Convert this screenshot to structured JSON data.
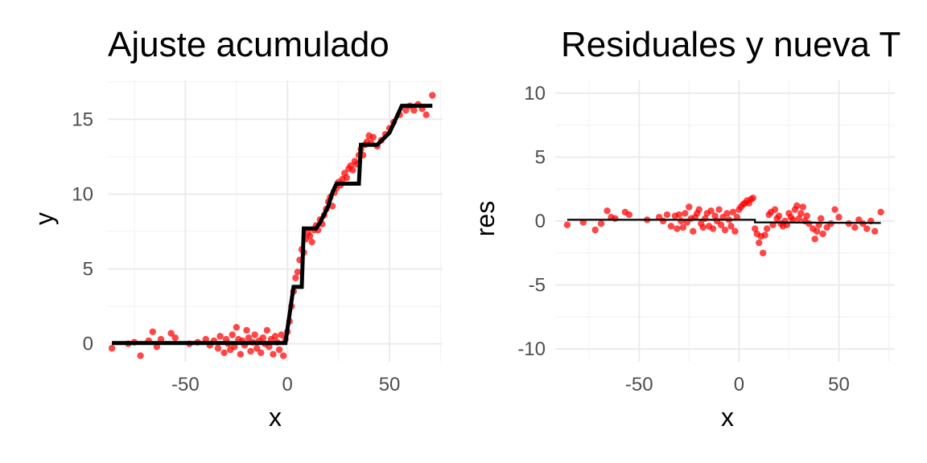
{
  "colors": {
    "points": "#ff0000",
    "fit_line": "#000000",
    "tick_text": "#4d4d4d",
    "grid": "#ebebeb"
  },
  "chart_data": [
    {
      "type": "scatter",
      "title": "Ajuste acumulado",
      "xlabel": "x",
      "ylabel": "y",
      "xlim": [
        -88,
        76
      ],
      "ylim": [
        -1.2,
        17.6
      ],
      "xticks": [
        -50,
        0,
        50
      ],
      "yticks": [
        0,
        5,
        10,
        15
      ],
      "grid": true,
      "legend": "none",
      "series": [
        {
          "kind": "points",
          "points": [
            [
              -86,
              -0.3
            ],
            [
              -78,
              0.0
            ],
            [
              -75,
              0.1
            ],
            [
              -72,
              -0.8
            ],
            [
              -68,
              0.2
            ],
            [
              -66,
              0.8
            ],
            [
              -64,
              -0.2
            ],
            [
              -62,
              0.3
            ],
            [
              -57,
              0.7
            ],
            [
              -55,
              0.4
            ],
            [
              -48,
              0.0
            ],
            [
              -44,
              0.1
            ],
            [
              -40,
              0.3
            ],
            [
              -38,
              -0.1
            ],
            [
              -36,
              0.2
            ],
            [
              -34,
              -0.3
            ],
            [
              -33,
              0.5
            ],
            [
              -31,
              -0.6
            ],
            [
              -30,
              0.3
            ],
            [
              -29,
              0.0
            ],
            [
              -28,
              -0.4
            ],
            [
              -27,
              0.6
            ],
            [
              -26,
              -0.2
            ],
            [
              -25,
              1.1
            ],
            [
              -24,
              0.3
            ],
            [
              -23,
              -0.7
            ],
            [
              -22,
              0.2
            ],
            [
              -21,
              -0.1
            ],
            [
              -20,
              0.9
            ],
            [
              -19,
              0.4
            ],
            [
              -18,
              -0.5
            ],
            [
              -17,
              0.1
            ],
            [
              -16,
              0.6
            ],
            [
              -15,
              -0.3
            ],
            [
              -14,
              0.2
            ],
            [
              -13,
              -0.6
            ],
            [
              -12,
              0.4
            ],
            [
              -11,
              0.0
            ],
            [
              -10,
              0.9
            ],
            [
              -9,
              -0.2
            ],
            [
              -8,
              0.3
            ],
            [
              -7,
              -0.7
            ],
            [
              -6,
              0.5
            ],
            [
              -5,
              0.1
            ],
            [
              -4,
              -0.4
            ],
            [
              -3,
              0.6
            ],
            [
              -2,
              -0.8
            ],
            [
              -1,
              0.3
            ],
            [
              0,
              0.8
            ],
            [
              1,
              1.5
            ],
            [
              2,
              2.5
            ],
            [
              3,
              3.5
            ],
            [
              4,
              4.4
            ],
            [
              5,
              4.8
            ],
            [
              6,
              5.6
            ],
            [
              7,
              6.3
            ],
            [
              8,
              6.1
            ],
            [
              9,
              7.0
            ],
            [
              10,
              7.4
            ],
            [
              11,
              7.2
            ],
            [
              12,
              6.8
            ],
            [
              13,
              7.6
            ],
            [
              14,
              7.9
            ],
            [
              15,
              7.6
            ],
            [
              16,
              8.3
            ],
            [
              17,
              8.0
            ],
            [
              18,
              8.6
            ],
            [
              19,
              9.0
            ],
            [
              20,
              9.5
            ],
            [
              21,
              9.8
            ],
            [
              22,
              9.2
            ],
            [
              23,
              10.1
            ],
            [
              24,
              10.4
            ],
            [
              25,
              10.8
            ],
            [
              26,
              10.6
            ],
            [
              27,
              11.0
            ],
            [
              28,
              11.4
            ],
            [
              29,
              11.1
            ],
            [
              30,
              11.7
            ],
            [
              31,
              11.9
            ],
            [
              32,
              11.6
            ],
            [
              33,
              12.2
            ],
            [
              34,
              12.0
            ],
            [
              35,
              12.6
            ],
            [
              36,
              13.0
            ],
            [
              37,
              12.6
            ],
            [
              38,
              13.3
            ],
            [
              39,
              13.5
            ],
            [
              40,
              13.9
            ],
            [
              41,
              13.4
            ],
            [
              42,
              13.8
            ],
            [
              44,
              13.2
            ],
            [
              46,
              13.6
            ],
            [
              48,
              14.0
            ],
            [
              50,
              14.4
            ],
            [
              52,
              14.8
            ],
            [
              55,
              15.3
            ],
            [
              58,
              15.6
            ],
            [
              60,
              15.9
            ],
            [
              62,
              15.6
            ],
            [
              64,
              16.0
            ],
            [
              66,
              15.7
            ],
            [
              68,
              15.3
            ],
            [
              71,
              16.6
            ]
          ]
        },
        {
          "kind": "step-line",
          "points": [
            [
              -86,
              0.05
            ],
            [
              -1,
              0.05
            ],
            [
              3,
              3.8
            ],
            [
              7,
              3.8
            ],
            [
              8,
              7.7
            ],
            [
              14,
              7.7
            ],
            [
              16,
              8.1
            ],
            [
              20,
              9.2
            ],
            [
              22,
              10.1
            ],
            [
              24,
              10.7
            ],
            [
              30,
              10.7
            ],
            [
              30,
              10.7
            ],
            [
              33,
              10.7
            ],
            [
              33,
              10.7
            ],
            [
              35,
              10.7
            ],
            [
              36,
              13.3
            ],
            [
              44,
              13.3
            ],
            [
              50,
              14.1
            ],
            [
              56,
              15.9
            ],
            [
              71,
              15.9
            ]
          ]
        }
      ]
    },
    {
      "type": "scatter",
      "title": "Residuales y nueva T",
      "xlabel": "x",
      "ylabel": "res",
      "xlim": [
        -92,
        78
      ],
      "ylim": [
        -11,
        11
      ],
      "xticks": [
        -50,
        0,
        50
      ],
      "yticks": [
        -10,
        -5,
        0,
        5,
        10
      ],
      "grid": true,
      "legend": "none",
      "series": [
        {
          "kind": "points",
          "points": [
            [
              -86,
              -0.3
            ],
            [
              -78,
              -0.1
            ],
            [
              -72,
              -0.7
            ],
            [
              -69,
              -0.2
            ],
            [
              -66,
              0.8
            ],
            [
              -64,
              0.3
            ],
            [
              -62,
              0.2
            ],
            [
              -57,
              0.7
            ],
            [
              -55,
              0.5
            ],
            [
              -46,
              0.1
            ],
            [
              -40,
              0.3
            ],
            [
              -38,
              0.0
            ],
            [
              -36,
              0.5
            ],
            [
              -34,
              -0.4
            ],
            [
              -32,
              0.4
            ],
            [
              -31,
              -0.6
            ],
            [
              -30,
              0.5
            ],
            [
              -29,
              0.0
            ],
            [
              -28,
              -0.5
            ],
            [
              -27,
              0.6
            ],
            [
              -26,
              -0.1
            ],
            [
              -25,
              1.1
            ],
            [
              -24,
              0.2
            ],
            [
              -23,
              -0.8
            ],
            [
              -22,
              0.3
            ],
            [
              -21,
              0.6
            ],
            [
              -20,
              0.9
            ],
            [
              -19,
              -0.2
            ],
            [
              -18,
              -0.5
            ],
            [
              -17,
              0.2
            ],
            [
              -16,
              0.6
            ],
            [
              -15,
              -0.4
            ],
            [
              -14,
              0.8
            ],
            [
              -13,
              -0.6
            ],
            [
              -12,
              0.4
            ],
            [
              -11,
              0.0
            ],
            [
              -10,
              0.9
            ],
            [
              -9,
              -0.3
            ],
            [
              -8,
              0.3
            ],
            [
              -7,
              -0.7
            ],
            [
              -6,
              0.6
            ],
            [
              -5,
              0.1
            ],
            [
              -4,
              -0.4
            ],
            [
              -3,
              0.7
            ],
            [
              -2,
              -0.8
            ],
            [
              -1,
              0.3
            ],
            [
              0,
              0.9
            ],
            [
              1,
              1.1
            ],
            [
              2,
              1.3
            ],
            [
              3,
              1.4
            ],
            [
              4,
              1.6
            ],
            [
              5,
              1.4
            ],
            [
              6,
              1.7
            ],
            [
              7,
              1.8
            ],
            [
              8,
              -0.6
            ],
            [
              9,
              -1.0
            ],
            [
              10,
              -1.7
            ],
            [
              11,
              -1.2
            ],
            [
              12,
              -2.5
            ],
            [
              13,
              -1.1
            ],
            [
              14,
              -0.6
            ],
            [
              15,
              0.5
            ],
            [
              16,
              0.7
            ],
            [
              17,
              -0.3
            ],
            [
              18,
              0.9
            ],
            [
              19,
              0.2
            ],
            [
              20,
              0.4
            ],
            [
              21,
              -0.2
            ],
            [
              22,
              -0.4
            ],
            [
              23,
              0.0
            ],
            [
              24,
              -0.3
            ],
            [
              25,
              0.6
            ],
            [
              26,
              0.3
            ],
            [
              27,
              0.1
            ],
            [
              28,
              0.9
            ],
            [
              29,
              1.2
            ],
            [
              30,
              0.2
            ],
            [
              31,
              0.6
            ],
            [
              32,
              1.1
            ],
            [
              33,
              0.0
            ],
            [
              34,
              0.4
            ],
            [
              35,
              -0.2
            ],
            [
              37,
              -0.6
            ],
            [
              38,
              -1.4
            ],
            [
              39,
              -0.8
            ],
            [
              40,
              -0.3
            ],
            [
              41,
              0.2
            ],
            [
              42,
              -1.0
            ],
            [
              44,
              -0.5
            ],
            [
              46,
              -0.2
            ],
            [
              48,
              0.9
            ],
            [
              50,
              0.3
            ],
            [
              55,
              -0.2
            ],
            [
              58,
              -0.5
            ],
            [
              60,
              0.1
            ],
            [
              62,
              -0.2
            ],
            [
              64,
              -0.6
            ],
            [
              66,
              0.0
            ],
            [
              68,
              -0.8
            ],
            [
              71,
              0.7
            ]
          ]
        },
        {
          "kind": "line",
          "points": [
            [
              -86,
              0.1
            ],
            [
              8,
              0.1
            ],
            [
              8,
              -0.1
            ],
            [
              71,
              -0.15
            ]
          ]
        }
      ]
    }
  ]
}
